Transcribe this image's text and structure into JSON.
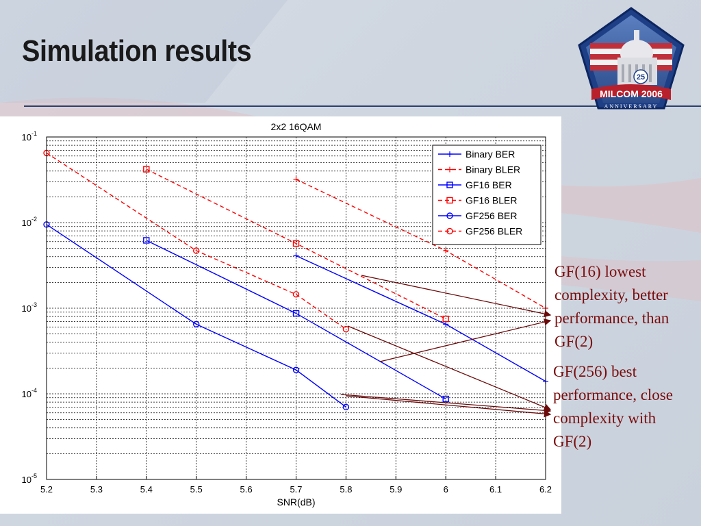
{
  "slide": {
    "title": "Simulation results",
    "logo_text": "MILCOM 2006",
    "logo_subtext": "ANNIVERSARY",
    "logo_badge": "25"
  },
  "notes": [
    "GF(16) lowest complexity, better performance, than GF(2)",
    "GF(256) best performance, close complexity with GF(2)"
  ],
  "colors": {
    "blue": "#0000ff",
    "red": "#ff0000",
    "note": "#7a0c0c",
    "arrow": "#6b0a0a"
  },
  "chart_data": {
    "type": "line",
    "title": "2x2 16QAM",
    "xlabel": "SNR(dB)",
    "ylabel": "",
    "xlim": [
      5.2,
      6.2
    ],
    "ylim": [
      1e-05,
      0.1
    ],
    "yscale": "log",
    "grid": true,
    "legend_position": "top-right",
    "x_ticks": [
      "5.2",
      "5.3",
      "5.4",
      "5.5",
      "5.6",
      "5.7",
      "5.8",
      "5.9",
      "6",
      "6.1",
      "6.2"
    ],
    "y_ticks": [
      {
        "base": "10",
        "exp": "-5"
      },
      {
        "base": "10",
        "exp": "-4"
      },
      {
        "base": "10",
        "exp": "-3"
      },
      {
        "base": "10",
        "exp": "-2"
      },
      {
        "base": "10",
        "exp": "-1"
      }
    ],
    "series": [
      {
        "name": "Binary BER",
        "color": "#0000ff",
        "dash": false,
        "marker": "plus",
        "x": [
          5.7,
          6.0,
          6.2
        ],
        "y": [
          0.0041,
          0.00065,
          0.00014
        ]
      },
      {
        "name": "Binary BLER",
        "color": "#ff0000",
        "dash": true,
        "marker": "plus",
        "x": [
          5.7,
          6.0,
          6.2
        ],
        "y": [
          0.032,
          0.0047,
          0.001
        ]
      },
      {
        "name": "GF16 BER",
        "color": "#0000ff",
        "dash": false,
        "marker": "square",
        "x": [
          5.4,
          5.7,
          6.0
        ],
        "y": [
          0.0062,
          0.00087,
          8.7e-05
        ]
      },
      {
        "name": "GF16 BLER",
        "color": "#ff0000",
        "dash": true,
        "marker": "square",
        "x": [
          5.4,
          5.7,
          6.0
        ],
        "y": [
          0.042,
          0.0057,
          0.00075
        ]
      },
      {
        "name": "GF256 BER",
        "color": "#0000ff",
        "dash": false,
        "marker": "circle",
        "x": [
          5.2,
          5.5,
          5.7,
          5.8
        ],
        "y": [
          0.0095,
          0.00065,
          0.00019,
          7e-05
        ]
      },
      {
        "name": "GF256 BLER",
        "color": "#ff0000",
        "dash": true,
        "marker": "circle",
        "x": [
          5.2,
          5.5,
          5.7,
          5.8
        ],
        "y": [
          0.065,
          0.0047,
          0.00145,
          0.00057
        ]
      }
    ]
  }
}
